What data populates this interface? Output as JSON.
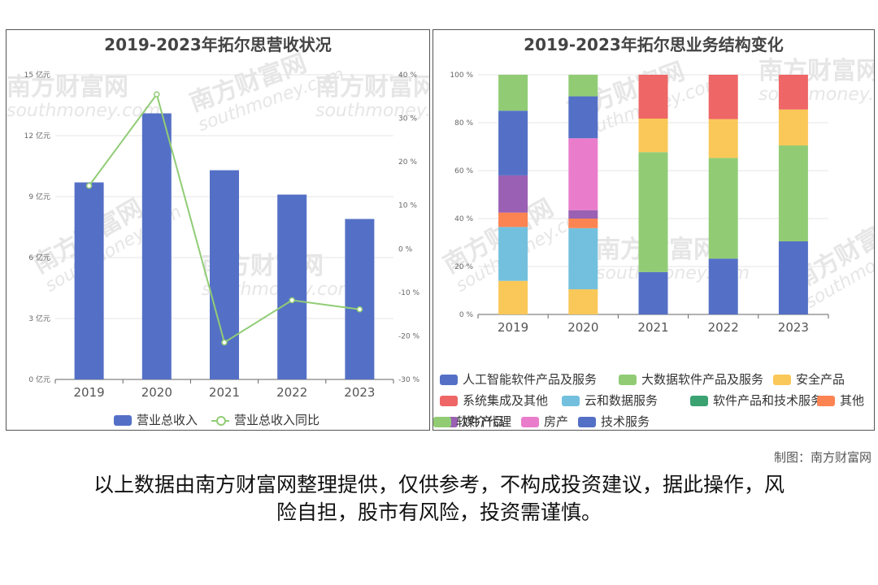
{
  "watermark": {
    "cn": "南方财富网",
    "en": "southmoney.com"
  },
  "credit": "制图：南方财富网",
  "disclaimer_lines": [
    "以上数据由南方财富网整理提供，仅供参考，不构成投资建议，据此操作，风",
    "险自担，股市有风险，投资需谨慎。"
  ],
  "chart_data": [
    {
      "type": "bar",
      "title": "2019-2023年拓尔思营收状况",
      "categories": [
        "2019",
        "2020",
        "2021",
        "2022",
        "2023"
      ],
      "series": [
        {
          "name": "营业总收入",
          "type": "bar",
          "axis": "left",
          "color": "#5470c6",
          "values": [
            9.7,
            13.1,
            10.3,
            9.1,
            7.9
          ]
        },
        {
          "name": "营业总收入同比",
          "type": "line",
          "axis": "right",
          "color": "#91cc75",
          "values": [
            14.5,
            35.5,
            -21.5,
            -11.8,
            -13.9
          ]
        }
      ],
      "left_axis": {
        "ylim": [
          0,
          15
        ],
        "ticks": [
          0,
          3,
          6,
          9,
          12,
          15
        ],
        "tick_labels": [
          "0 亿元",
          "3 亿元",
          "6 亿元",
          "9 亿元",
          "12 亿元",
          "15 亿元"
        ]
      },
      "right_axis": {
        "ylim": [
          -30,
          40
        ],
        "ticks": [
          -30,
          -20,
          -10,
          0,
          10,
          20,
          30,
          40
        ],
        "tick_labels": [
          "-30 %",
          "-20 %",
          "-10 %",
          "0 %",
          "10 %",
          "20 %",
          "30 %",
          "40 %"
        ]
      },
      "grid": true,
      "legend": "bottom"
    },
    {
      "type": "bar",
      "stacked": true,
      "percent": true,
      "title": "2019-2023年拓尔思业务结构变化",
      "categories": [
        "2019",
        "2020",
        "2021",
        "2022",
        "2023"
      ],
      "ylim": [
        0,
        100
      ],
      "ticks": [
        0,
        20,
        40,
        60,
        80,
        100
      ],
      "tick_labels": [
        "0 %",
        "20 %",
        "40 %",
        "60 %",
        "80 %",
        "100 %"
      ],
      "series": [
        {
          "name": "人工智能软件产品及服务",
          "color": "#5470c6",
          "values": [
            0,
            0,
            17.7,
            23.3,
            30.5
          ]
        },
        {
          "name": "大数据软件产品及服务",
          "color": "#91cc75",
          "values": [
            0,
            0,
            50,
            42,
            40
          ]
        },
        {
          "name": "安全产品",
          "color": "#fac858",
          "values": [
            14,
            10.5,
            14,
            16.2,
            15
          ]
        },
        {
          "name": "系统集成及其他",
          "color": "#ee6666",
          "values": [
            0,
            0,
            18.3,
            18.5,
            14.5
          ]
        },
        {
          "name": "云和数据服务",
          "color": "#73c0de",
          "values": [
            22.5,
            25.5,
            0,
            0,
            0
          ]
        },
        {
          "name": "软件产品和技术服务",
          "color": "#3ba272",
          "values": [
            0,
            0,
            0,
            0,
            0
          ]
        },
        {
          "name": "其他",
          "color": "#fc8452",
          "values": [
            6,
            4,
            0,
            0,
            0
          ]
        },
        {
          "name": "媒介代理",
          "color": "#9a60b4",
          "values": [
            15.5,
            3.5,
            0,
            0,
            0
          ]
        },
        {
          "name": "房产",
          "color": "#ea7ccc",
          "values": [
            0,
            30,
            0,
            0,
            0
          ]
        },
        {
          "name": "技术服务",
          "color": "#5470c6",
          "values": [
            27,
            17.5,
            0,
            0,
            0
          ]
        },
        {
          "name": "软件产品",
          "color": "#91cc75",
          "values": [
            15,
            9,
            0,
            0,
            0
          ]
        }
      ],
      "grid": true,
      "legend": "bottom"
    }
  ]
}
